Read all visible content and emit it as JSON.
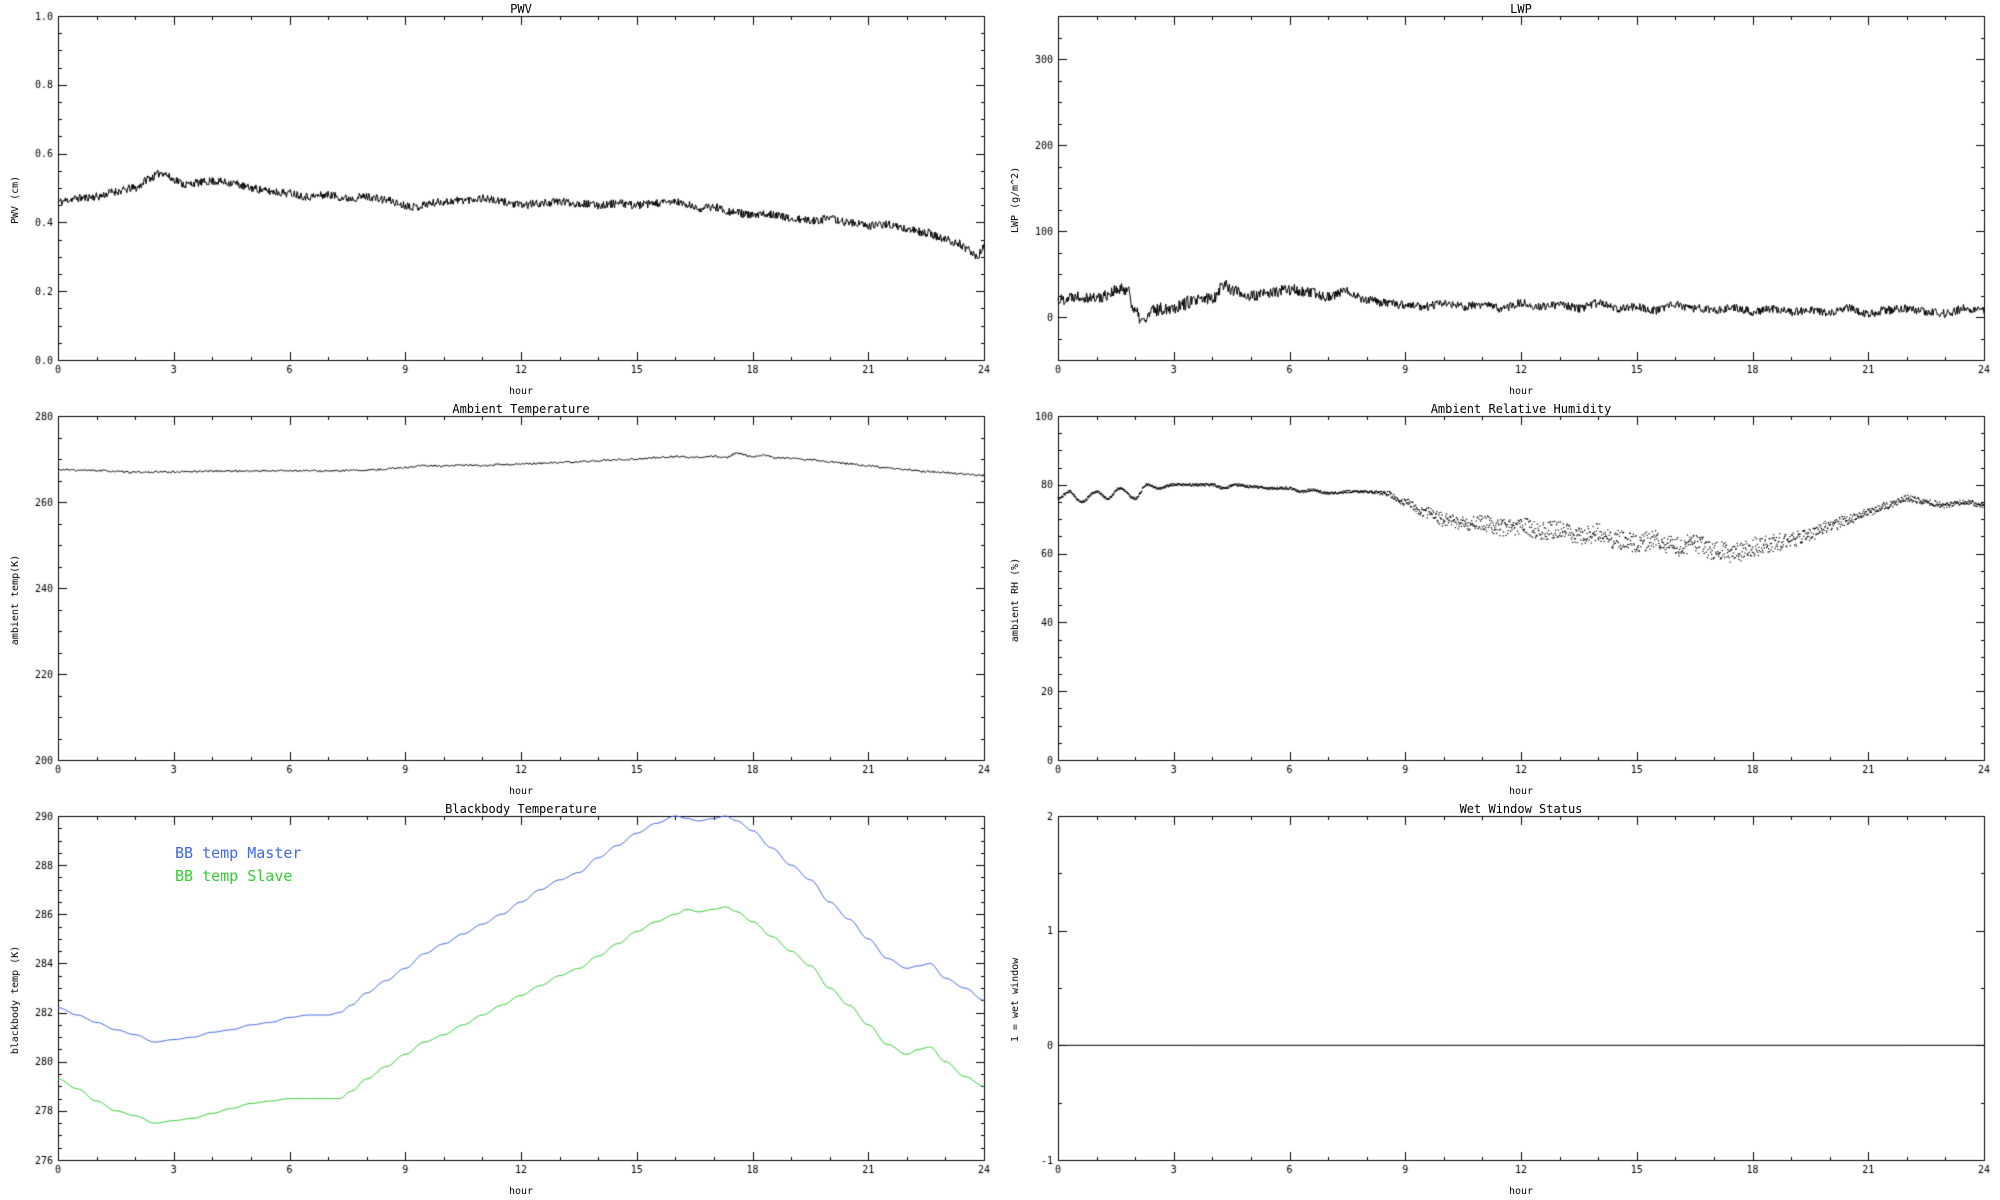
{
  "page": {
    "background": "#ffffff",
    "text_color": "#000000"
  },
  "chart_data": [
    {
      "type": "line",
      "title": "PWV",
      "xlabel": "hour",
      "ylabel": "PWV (cm)",
      "xlim": [
        0,
        24
      ],
      "ylim": [
        0,
        1
      ],
      "xticks": [
        0,
        3,
        6,
        9,
        12,
        15,
        18,
        21,
        24
      ],
      "xminor": 1,
      "yticks": [
        0,
        0.2,
        0.4,
        0.6,
        0.8,
        1
      ],
      "yminor": 0.05,
      "ytick_decimals": 1,
      "grid": false,
      "legend_position": "none",
      "series": [
        {
          "name": "PWV",
          "color": "#000000",
          "style": "line",
          "points": 1400,
          "seed": 11,
          "noise": 0.012,
          "anchors_x": [
            0,
            0.5,
            1,
            1.5,
            2,
            2.4,
            2.7,
            3,
            3.3,
            3.6,
            4,
            4.5,
            5,
            5.5,
            6,
            6.5,
            7,
            7.5,
            8,
            8.5,
            9,
            9.3,
            9.6,
            10,
            10.5,
            11,
            11.5,
            12,
            12.5,
            13,
            13.5,
            14,
            14.5,
            15,
            15.5,
            16,
            16.3,
            16.6,
            17,
            17.5,
            18,
            18.5,
            19,
            19.5,
            20,
            20.5,
            21,
            21.5,
            22,
            22.5,
            23,
            23.3,
            23.6,
            23.8,
            24
          ],
          "anchors_y": [
            0.46,
            0.47,
            0.475,
            0.49,
            0.5,
            0.53,
            0.545,
            0.525,
            0.51,
            0.515,
            0.52,
            0.515,
            0.5,
            0.49,
            0.485,
            0.475,
            0.48,
            0.47,
            0.475,
            0.465,
            0.45,
            0.445,
            0.455,
            0.46,
            0.465,
            0.47,
            0.46,
            0.45,
            0.455,
            0.46,
            0.455,
            0.45,
            0.455,
            0.45,
            0.455,
            0.46,
            0.45,
            0.44,
            0.445,
            0.43,
            0.42,
            0.425,
            0.41,
            0.405,
            0.41,
            0.4,
            0.39,
            0.395,
            0.38,
            0.37,
            0.35,
            0.34,
            0.32,
            0.3,
            0.325
          ]
        }
      ]
    },
    {
      "type": "line",
      "title": "LWP",
      "xlabel": "hour",
      "ylabel": "LWP (g/m^2)",
      "xlim": [
        0,
        24
      ],
      "ylim": [
        -50,
        350
      ],
      "xticks": [
        0,
        3,
        6,
        9,
        12,
        15,
        18,
        21,
        24
      ],
      "xminor": 1,
      "yticks": [
        0,
        100,
        200,
        300
      ],
      "yminor": 25,
      "ytick_decimals": 0,
      "grid": false,
      "legend_position": "none",
      "series": [
        {
          "name": "LWP",
          "color": "#000000",
          "style": "line",
          "points": 1400,
          "seed": 22,
          "noise_x": [
            0,
            3,
            5,
            9,
            24
          ],
          "noise_y": [
            7,
            8,
            7,
            5,
            5
          ],
          "anchors_x": [
            0,
            0.5,
            1,
            1.5,
            1.8,
            2,
            2.2,
            2.5,
            3,
            3.5,
            4,
            4.3,
            4.6,
            5,
            5.5,
            6,
            6.5,
            7,
            7.5,
            8,
            8.5,
            9,
            9.5,
            10,
            10.5,
            11,
            11.5,
            12,
            12.5,
            13,
            13.5,
            14,
            14.5,
            15,
            15.5,
            16,
            16.5,
            17,
            17.5,
            18,
            18.5,
            19,
            19.5,
            20,
            20.5,
            21,
            21.5,
            22,
            22.5,
            23,
            23.5,
            24
          ],
          "anchors_y": [
            20,
            25,
            22,
            30,
            33,
            5,
            -5,
            8,
            12,
            18,
            22,
            38,
            30,
            24,
            28,
            32,
            28,
            24,
            30,
            20,
            16,
            14,
            12,
            16,
            12,
            14,
            10,
            16,
            12,
            14,
            10,
            16,
            10,
            12,
            8,
            14,
            10,
            8,
            12,
            6,
            10,
            6,
            8,
            4,
            10,
            4,
            8,
            10,
            6,
            4,
            10,
            8
          ]
        }
      ]
    },
    {
      "type": "line",
      "title": "Ambient Temperature",
      "xlabel": "hour",
      "ylabel": "ambient temp(K)",
      "xlim": [
        0,
        24
      ],
      "ylim": [
        200,
        280
      ],
      "xticks": [
        0,
        3,
        6,
        9,
        12,
        15,
        18,
        21,
        24
      ],
      "xminor": 1,
      "yticks": [
        200,
        220,
        240,
        260,
        280
      ],
      "yminor": 5,
      "ytick_decimals": 0,
      "grid": false,
      "legend_position": "none",
      "series": [
        {
          "name": "ambient temp",
          "color": "#000000",
          "style": "line",
          "points": 900,
          "seed": 33,
          "noise": 0.22,
          "anchors_x": [
            0,
            1,
            2,
            3,
            4,
            5,
            6,
            7,
            8,
            9,
            9.5,
            10,
            10.5,
            11,
            11.5,
            12,
            12.5,
            13,
            13.5,
            14,
            14.5,
            15,
            15.5,
            16,
            16.5,
            17,
            17.3,
            17.6,
            18,
            18.3,
            18.6,
            19,
            19.5,
            20,
            20.5,
            21,
            21.5,
            22,
            22.5,
            23,
            23.5,
            24
          ],
          "anchors_y": [
            267.5,
            267.3,
            266.9,
            267.0,
            267.2,
            267.2,
            267.3,
            267.2,
            267.4,
            268.0,
            268.5,
            268.3,
            268.6,
            268.4,
            268.7,
            268.8,
            269.0,
            269.2,
            269.3,
            269.6,
            269.8,
            270.0,
            270.3,
            270.6,
            270.4,
            270.6,
            270.3,
            271.3,
            270.6,
            270.9,
            270.3,
            270.2,
            269.8,
            269.3,
            268.9,
            268.4,
            268.0,
            267.5,
            267.1,
            266.8,
            266.5,
            266.2
          ]
        }
      ]
    },
    {
      "type": "scatter",
      "title": "Ambient Relative Humidity",
      "xlabel": "hour",
      "ylabel": "ambient RH (%)",
      "xlim": [
        0,
        24
      ],
      "ylim": [
        0,
        100
      ],
      "xticks": [
        0,
        3,
        6,
        9,
        12,
        15,
        18,
        21,
        24
      ],
      "xminor": 1,
      "yticks": [
        0,
        20,
        40,
        60,
        80,
        100
      ],
      "yminor": 5,
      "ytick_decimals": 0,
      "grid": false,
      "legend_position": "none",
      "series": [
        {
          "name": "ambient RH",
          "color": "#000000",
          "style": "dots",
          "points": 2000,
          "seed": 44,
          "noise_x": [
            0,
            8,
            9,
            10,
            12,
            15,
            18,
            20,
            21,
            24
          ],
          "noise_y": [
            0.35,
            0.35,
            1.0,
            2.0,
            2.5,
            2.8,
            2.8,
            1.8,
            1.0,
            0.7
          ],
          "anchors_x": [
            0,
            0.3,
            0.6,
            1,
            1.3,
            1.6,
            2,
            2.3,
            2.6,
            3,
            3.5,
            4,
            4.3,
            4.6,
            5,
            5.5,
            6,
            6.3,
            6.6,
            7,
            7.5,
            8,
            8.5,
            9,
            9.5,
            10,
            10.5,
            11,
            11.5,
            12,
            12.5,
            13,
            13.5,
            14,
            14.5,
            15,
            15.5,
            16,
            16.5,
            17,
            17.5,
            18,
            18.5,
            19,
            19.5,
            20,
            20.5,
            21,
            21.5,
            22,
            22.5,
            23,
            23.5,
            24
          ],
          "anchors_y": [
            76,
            78,
            75,
            78,
            76,
            79,
            76,
            80,
            79,
            80,
            80,
            80,
            79,
            80,
            79.5,
            79,
            79,
            78,
            78.5,
            77.5,
            78,
            78,
            77.5,
            75,
            72,
            70,
            68.5,
            69,
            67.5,
            68,
            66.5,
            67,
            65,
            66,
            64,
            63,
            64,
            62,
            63,
            61,
            60,
            62,
            63,
            64,
            65.5,
            68,
            70,
            72,
            74,
            76,
            75,
            74,
            75,
            74
          ]
        }
      ]
    },
    {
      "type": "line",
      "title": "Blackbody Temperature",
      "xlabel": "hour",
      "ylabel": "blackbody temp (K)",
      "xlim": [
        0,
        24
      ],
      "ylim": [
        276,
        290
      ],
      "xticks": [
        0,
        3,
        6,
        9,
        12,
        15,
        18,
        21,
        24
      ],
      "xminor": 1,
      "yticks": [
        276,
        278,
        280,
        282,
        284,
        286,
        288,
        290
      ],
      "yminor": 0.5,
      "ytick_decimals": 0,
      "grid": false,
      "legend_position": "upper-left-inside",
      "series": [
        {
          "name": "BB temp Master",
          "color": "#4169e1",
          "style": "line",
          "points": 500,
          "seed": 1,
          "noise": 0,
          "anchors_x": [
            0,
            0.5,
            1,
            1.5,
            2,
            2.5,
            3,
            3.5,
            4,
            4.5,
            5,
            5.5,
            6,
            6.5,
            7,
            7.3,
            7.6,
            8,
            8.5,
            9,
            9.5,
            10,
            10.5,
            11,
            11.5,
            12,
            12.5,
            13,
            13.5,
            14,
            14.5,
            15,
            15.5,
            16,
            16.3,
            16.6,
            17,
            17.3,
            17.6,
            18,
            18.5,
            19,
            19.5,
            20,
            20.5,
            21,
            21.5,
            22,
            22.3,
            22.6,
            23,
            23.5,
            24
          ],
          "anchors_y": [
            282.2,
            281.9,
            281.6,
            281.3,
            281.1,
            280.8,
            280.9,
            281.0,
            281.2,
            281.3,
            281.5,
            281.6,
            281.8,
            281.9,
            281.9,
            282.0,
            282.3,
            282.8,
            283.3,
            283.8,
            284.4,
            284.8,
            285.2,
            285.6,
            286.0,
            286.5,
            287.0,
            287.4,
            287.7,
            288.3,
            288.8,
            289.3,
            289.7,
            290.0,
            289.9,
            289.8,
            289.9,
            290.0,
            289.8,
            289.4,
            288.7,
            288.0,
            287.4,
            286.5,
            285.8,
            285.0,
            284.2,
            283.8,
            283.9,
            284.0,
            283.4,
            283.0,
            282.5
          ]
        },
        {
          "name": "BB temp Slave",
          "color": "#32cd32",
          "style": "line",
          "points": 500,
          "seed": 2,
          "noise": 0,
          "anchors_x": [
            0,
            0.5,
            1,
            1.5,
            2,
            2.5,
            3,
            3.5,
            4,
            4.5,
            5,
            5.5,
            6,
            6.5,
            7,
            7.3,
            7.6,
            8,
            8.5,
            9,
            9.5,
            10,
            10.5,
            11,
            11.5,
            12,
            12.5,
            13,
            13.5,
            14,
            14.5,
            15,
            15.5,
            16,
            16.3,
            16.6,
            17,
            17.3,
            17.6,
            18,
            18.5,
            19,
            19.5,
            20,
            20.5,
            21,
            21.5,
            22,
            22.3,
            22.6,
            23,
            23.5,
            24
          ],
          "anchors_y": [
            279.3,
            278.9,
            278.4,
            278.0,
            277.8,
            277.5,
            277.6,
            277.7,
            277.9,
            278.1,
            278.3,
            278.4,
            278.5,
            278.5,
            278.5,
            278.5,
            278.8,
            279.3,
            279.8,
            280.3,
            280.8,
            281.1,
            281.5,
            281.9,
            282.3,
            282.7,
            283.1,
            283.5,
            283.8,
            284.3,
            284.8,
            285.3,
            285.7,
            286.0,
            286.2,
            286.1,
            286.2,
            286.3,
            286.1,
            285.7,
            285.1,
            284.5,
            283.9,
            283.0,
            282.3,
            281.5,
            280.7,
            280.3,
            280.5,
            280.6,
            280.0,
            279.4,
            279.0
          ]
        }
      ]
    },
    {
      "type": "line",
      "title": "Wet Window Status",
      "xlabel": "hour",
      "ylabel": "1 = wet window",
      "xlim": [
        0,
        24
      ],
      "ylim": [
        -1,
        2
      ],
      "xticks": [
        0,
        3,
        6,
        9,
        12,
        15,
        18,
        21,
        24
      ],
      "xminor": 1,
      "yticks": [
        -1,
        0,
        1,
        2
      ],
      "yminor": 0.5,
      "ytick_decimals": 0,
      "grid": false,
      "legend_position": "none",
      "series": [
        {
          "name": "wet window flag",
          "color": "#000000",
          "style": "line",
          "points": 2,
          "seed": 3,
          "noise": 0,
          "anchors_x": [
            0,
            24
          ],
          "anchors_y": [
            0,
            0
          ]
        }
      ]
    }
  ]
}
